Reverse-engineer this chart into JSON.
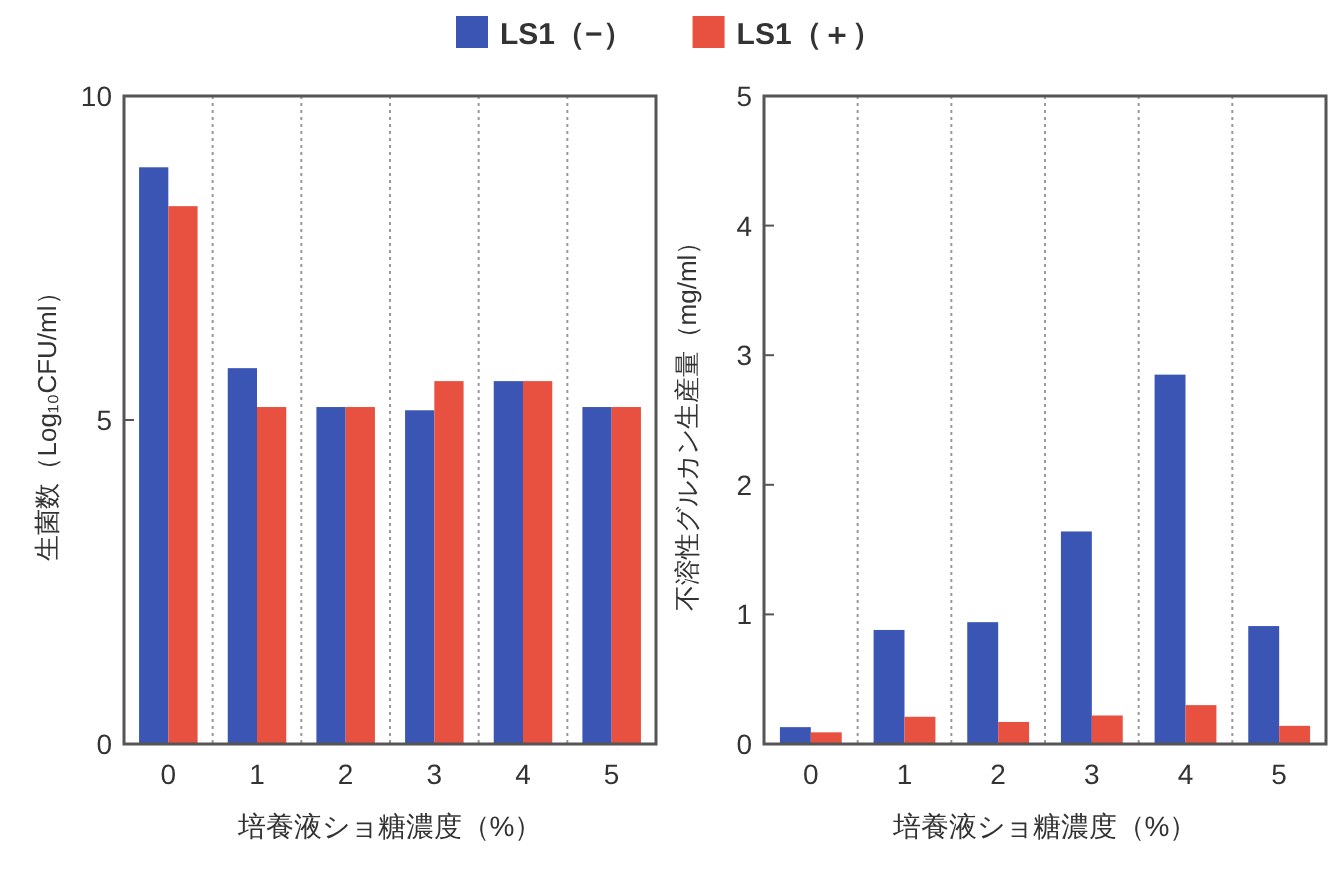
{
  "chart_data": [
    {
      "type": "bar",
      "categories": [
        "0",
        "1",
        "2",
        "3",
        "4",
        "5"
      ],
      "xlabel": "培養液ショ糖濃度（%）",
      "ylabel": "生菌数（Log₁₀CFU/ml）",
      "ylim": [
        0,
        10
      ],
      "yticks": [
        0,
        5,
        10
      ],
      "grid": "x",
      "legend": "top",
      "series": [
        {
          "name": "LS1（−）",
          "color": "#3a55b4",
          "values": [
            8.9,
            5.8,
            5.2,
            5.15,
            5.6,
            5.2
          ]
        },
        {
          "name": "LS1（＋）",
          "color": "#e8503f",
          "values": [
            8.3,
            5.2,
            5.2,
            5.6,
            5.6,
            5.2
          ]
        }
      ]
    },
    {
      "type": "bar",
      "categories": [
        "0",
        "1",
        "2",
        "3",
        "4",
        "5"
      ],
      "xlabel": "培養液ショ糖濃度（%）",
      "ylabel": "不溶性グルカン生産量（mg/ml）",
      "ylim": [
        0,
        5
      ],
      "yticks": [
        0,
        1,
        2,
        3,
        4,
        5
      ],
      "grid": "x",
      "series": [
        {
          "color": "#3a55b4",
          "values": [
            0.13,
            0.88,
            0.94,
            1.64,
            2.85,
            0.91
          ]
        },
        {
          "color": "#e8503f",
          "values": [
            0.09,
            0.21,
            0.17,
            0.22,
            0.3,
            0.14
          ]
        }
      ]
    }
  ]
}
